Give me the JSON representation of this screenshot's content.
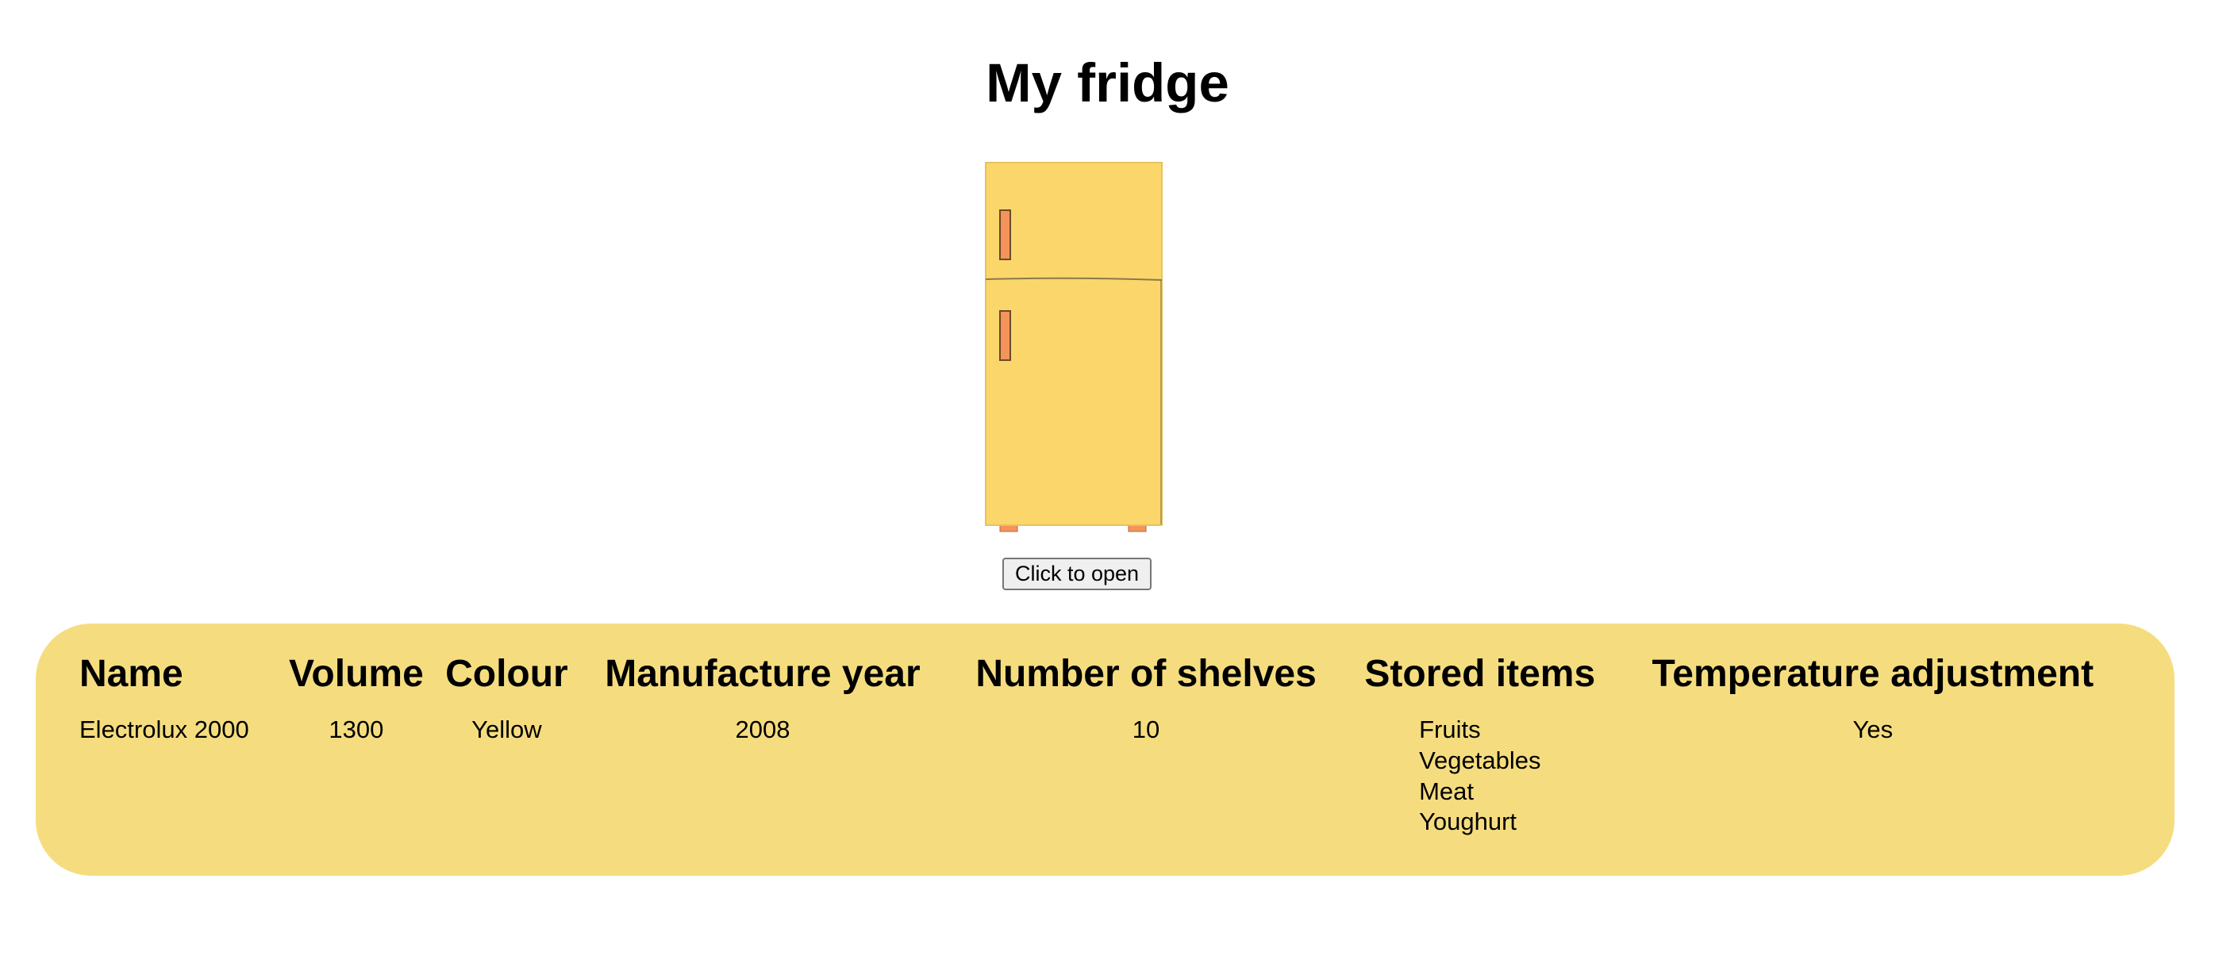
{
  "page": {
    "title": "My fridge"
  },
  "fridge": {
    "image_name": "fridge-illustration",
    "body_color": "#fbd66a",
    "handle_color": "#f4935a",
    "button_label": "Click to open"
  },
  "panel": {
    "background_color": "#f5dd7f",
    "headers": [
      "Name",
      "Volume",
      "Colour",
      "Manufacture year",
      "Number of shelves",
      "Stored items",
      "Temperature adjustment"
    ],
    "row": {
      "name": "Electrolux 2000",
      "volume": "1300",
      "colour": "Yellow",
      "manufacture_year": "2008",
      "number_of_shelves": "10",
      "stored_items": [
        "Fruits",
        "Vegetables",
        "Meat",
        "Youghurt"
      ],
      "temperature_adjustment": "Yes"
    }
  }
}
